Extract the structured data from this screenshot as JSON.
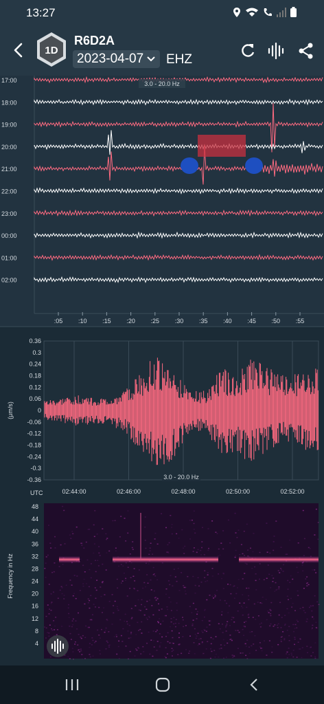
{
  "status": {
    "time": "13:27"
  },
  "header": {
    "badge": "1D",
    "station": "R6D2A",
    "date": "2023-04-07",
    "channel": "EHZ"
  },
  "helicorder": {
    "filter_label": "3.0 - 20.0 Hz",
    "hours": [
      "17:00",
      "18:00",
      "19:00",
      "20:00",
      "21:00",
      "22:00",
      "23:00",
      "00:00",
      "01:00",
      "02:00"
    ],
    "minute_ticks": [
      ":05",
      ":10",
      ":15",
      ":20",
      ":25",
      ":30",
      ":35",
      ":40",
      ":45",
      ":50",
      ":55"
    ],
    "colors": {
      "pink": "#ff6b81",
      "white": "#ffffff",
      "highlight": "#c8303f",
      "marker": "#1e4fc0"
    }
  },
  "chart_data": [
    {
      "type": "line",
      "title": "",
      "filter_label": "3.0 - 20.0 Hz",
      "ylabel": "(μm/s)",
      "xlabel_prefix": "UTC",
      "yticks": [
        "0.36",
        "0.3",
        "0.24",
        "0.18",
        "0.12",
        "0.06",
        "0",
        "-0.06",
        "-0.12",
        "-0.18",
        "-0.24",
        "-0.3",
        "-0.36"
      ],
      "xticks": [
        "02:44:00",
        "02:46:00",
        "02:48:00",
        "02:50:00",
        "02:52:00"
      ],
      "ylim": [
        -0.36,
        0.36
      ],
      "x": [
        "02:42:30",
        "02:43:00",
        "02:44:00",
        "02:45:00",
        "02:46:00",
        "02:47:00",
        "02:47:30",
        "02:48:00",
        "02:48:30",
        "02:49:00",
        "02:49:30",
        "02:50:00",
        "02:50:30",
        "02:51:00",
        "02:51:30",
        "02:52:00",
        "02:52:30",
        "02:53:00"
      ],
      "series": [
        {
          "values_max": [
            0.05,
            0.06,
            0.08,
            0.07,
            0.06,
            0.1,
            0.2,
            0.3,
            0.2,
            0.12,
            0.1,
            0.22,
            0.2,
            0.28,
            0.22,
            0.18,
            0.2,
            0.24
          ],
          "values_min": [
            -0.05,
            -0.06,
            -0.08,
            -0.07,
            -0.07,
            -0.12,
            -0.22,
            -0.3,
            -0.26,
            -0.12,
            -0.12,
            -0.22,
            -0.24,
            -0.28,
            -0.2,
            -0.16,
            -0.2,
            -0.22
          ],
          "color": "#ff6b81"
        }
      ],
      "grid": true
    },
    {
      "type": "heatmap",
      "title": "",
      "ylabel": "Frequency in Hz",
      "yticks": [
        "48",
        "44",
        "40",
        "36",
        "32",
        "28",
        "24",
        "20",
        "16",
        "12",
        "8",
        "4"
      ],
      "ylim": [
        0,
        50
      ],
      "band_hz": 31,
      "colors": [
        "#1a0a25",
        "#4a1655",
        "#8a2a8a",
        "#c8508a",
        "#ff7aa0"
      ]
    }
  ],
  "icons": {
    "back": "back-arrow-icon",
    "refresh": "refresh-icon",
    "waveform": "waveform-icon",
    "share": "share-icon",
    "dropdown": "chevron-down-icon"
  }
}
